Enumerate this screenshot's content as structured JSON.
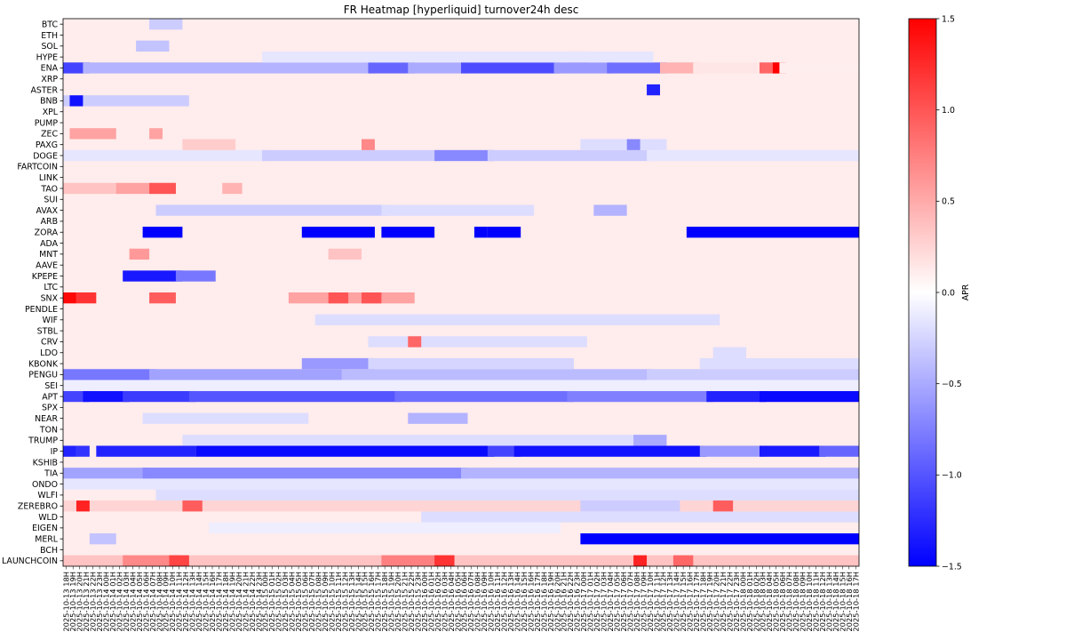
{
  "chart_data": {
    "type": "heatmap",
    "title": "FR Heatmap [hyperliquid] turnover24h desc",
    "colorbar_label": "APR",
    "colormap": "bwr",
    "vmin": -1.5,
    "vmax": 1.5,
    "colorbar_ticks": [
      1.5,
      1.0,
      0.5,
      0.0,
      -0.5,
      -1.0,
      -1.5
    ],
    "colorbar_tick_labels": [
      "1.5",
      "1.0",
      "0.5",
      "0.0",
      "−0.5",
      "−1.0",
      "−1.5"
    ],
    "colors": {
      "low": "#0000ff",
      "mid": "#ffffff",
      "high": "#ff0000",
      "baseline": "#fde6e6"
    },
    "time_start": "2025-10-13 18H",
    "time_end": "2025-10-18 17H",
    "x_tick_step_hours": 1,
    "rows": [
      "BTC",
      "ETH",
      "SOL",
      "HYPE",
      "ENA",
      "XRP",
      "ASTER",
      "BNB",
      "XPL",
      "PUMP",
      "ZEC",
      "PAXG",
      "DOGE",
      "FARTCOIN",
      "LINK",
      "TAO",
      "SUI",
      "AVAX",
      "ARB",
      "ZORA",
      "ADA",
      "MNT",
      "AAVE",
      "KPEPE",
      "LTC",
      "SNX",
      "PENDLE",
      "WIF",
      "STBL",
      "CRV",
      "LDO",
      "KBONK",
      "PENGU",
      "SEI",
      "APT",
      "SPX",
      "NEAR",
      "TON",
      "TRUMP",
      "IP",
      "KSHIB",
      "TIA",
      "ONDO",
      "WLFI",
      "ZEREBRO",
      "WLD",
      "EIGEN",
      "MERL",
      "BCH",
      "LAUNCHCOIN"
    ],
    "baseline_apr": 0.11,
    "segments": [
      {
        "row": "ZORA",
        "start": "2025-10-14 06H",
        "end": "2025-10-14 11H",
        "apr": -1.5
      },
      {
        "row": "ZORA",
        "start": "2025-10-15 06H",
        "end": "2025-10-15 16H",
        "apr": -1.5
      },
      {
        "row": "ZORA",
        "start": "2025-10-15 18H",
        "end": "2025-10-16 01H",
        "apr": -1.5
      },
      {
        "row": "ZORA",
        "start": "2025-10-16 08H",
        "end": "2025-10-16 09H",
        "apr": -1.5
      },
      {
        "row": "ZORA",
        "start": "2025-10-16 10H",
        "end": "2025-10-16 14H",
        "apr": -1.5
      },
      {
        "row": "ZORA",
        "start": "2025-10-17 16H",
        "end": "2025-10-18 17H",
        "apr": -1.5
      },
      {
        "row": "KPEPE",
        "start": "2025-10-14 03H",
        "end": "2025-10-14 11H",
        "apr": -1.35
      },
      {
        "row": "KPEPE",
        "start": "2025-10-14 11H",
        "end": "2025-10-14 16H",
        "apr": -0.8
      },
      {
        "row": "APT",
        "start": "2025-10-13 18H",
        "end": "2025-10-13 21H",
        "apr": -1.1
      },
      {
        "row": "APT",
        "start": "2025-10-13 21H",
        "end": "2025-10-14 03H",
        "apr": -1.4
      },
      {
        "row": "APT",
        "start": "2025-10-14 03H",
        "end": "2025-10-14 13H",
        "apr": -1.15
      },
      {
        "row": "APT",
        "start": "2025-10-14 13H",
        "end": "2025-10-15 20H",
        "apr": -1.0
      },
      {
        "row": "APT",
        "start": "2025-10-15 20H",
        "end": "2025-10-16 22H",
        "apr": -0.85
      },
      {
        "row": "APT",
        "start": "2025-10-16 22H",
        "end": "2025-10-17 19H",
        "apr": -0.75
      },
      {
        "row": "APT",
        "start": "2025-10-17 19H",
        "end": "2025-10-18 03H",
        "apr": -1.3
      },
      {
        "row": "APT",
        "start": "2025-10-18 03H",
        "end": "2025-10-18 17H",
        "apr": -1.45
      },
      {
        "row": "IP",
        "start": "2025-10-13 18H",
        "end": "2025-10-13 19H",
        "apr": -1.3
      },
      {
        "row": "IP",
        "start": "2025-10-13 20H",
        "end": "2025-10-13 21H",
        "apr": -1.2
      },
      {
        "row": "IP",
        "start": "2025-10-13 23H",
        "end": "2025-10-14 13H",
        "apr": -1.3
      },
      {
        "row": "IP",
        "start": "2025-10-14 14H",
        "end": "2025-10-16 10H",
        "apr": -1.45
      },
      {
        "row": "IP",
        "start": "2025-10-16 10H",
        "end": "2025-10-16 14H",
        "apr": -1.1
      },
      {
        "row": "IP",
        "start": "2025-10-16 14H",
        "end": "2025-10-17 18H",
        "apr": -1.4
      },
      {
        "row": "IP",
        "start": "2025-10-17 18H",
        "end": "2025-10-18 03H",
        "apr": -0.6
      },
      {
        "row": "IP",
        "start": "2025-10-18 03H",
        "end": "2025-10-18 12H",
        "apr": -1.35
      },
      {
        "row": "IP",
        "start": "2025-10-18 12H",
        "end": "2025-10-18 17H",
        "apr": -0.9
      },
      {
        "row": "MERL",
        "start": "2025-10-17 00H",
        "end": "2025-10-18 17H",
        "apr": -1.5
      },
      {
        "row": "MERL",
        "start": "2025-10-13 22H",
        "end": "2025-10-14 01H",
        "apr": -0.35
      },
      {
        "row": "PENGU",
        "start": "2025-10-13 18H",
        "end": "2025-10-14 07H",
        "apr": -0.8
      },
      {
        "row": "PENGU",
        "start": "2025-10-14 07H",
        "end": "2025-10-15 12H",
        "apr": -0.55
      },
      {
        "row": "PENGU",
        "start": "2025-10-15 12H",
        "end": "2025-10-17 10H",
        "apr": -0.4
      },
      {
        "row": "PENGU",
        "start": "2025-10-17 10H",
        "end": "2025-10-18 17H",
        "apr": -0.3
      },
      {
        "row": "TIA",
        "start": "2025-10-13 18H",
        "end": "2025-10-14 06H",
        "apr": -0.55
      },
      {
        "row": "TIA",
        "start": "2025-10-14 06H",
        "end": "2025-10-16 06H",
        "apr": -0.7
      },
      {
        "row": "TIA",
        "start": "2025-10-16 06H",
        "end": "2025-10-18 17H",
        "apr": -0.45
      },
      {
        "row": "ENA",
        "start": "2025-10-13 18H",
        "end": "2025-10-13 21H",
        "apr": -1.1
      },
      {
        "row": "ENA",
        "start": "2025-10-13 21H",
        "end": "2025-10-15 16H",
        "apr": -0.45
      },
      {
        "row": "ENA",
        "start": "2025-10-15 16H",
        "end": "2025-10-15 22H",
        "apr": -0.9
      },
      {
        "row": "ENA",
        "start": "2025-10-15 22H",
        "end": "2025-10-16 06H",
        "apr": -0.5
      },
      {
        "row": "ENA",
        "start": "2025-10-16 06H",
        "end": "2025-10-16 20H",
        "apr": -1.05
      },
      {
        "row": "ENA",
        "start": "2025-10-16 20H",
        "end": "2025-10-17 04H",
        "apr": -0.6
      },
      {
        "row": "ENA",
        "start": "2025-10-17 04H",
        "end": "2025-10-17 12H",
        "apr": -0.85
      },
      {
        "row": "ENA",
        "start": "2025-10-17 12H",
        "end": "2025-10-17 17H",
        "apr": 0.45
      },
      {
        "row": "ENA",
        "start": "2025-10-17 17H",
        "end": "2025-10-18 03H",
        "apr": 0.15
      },
      {
        "row": "ENA",
        "start": "2025-10-18 03H",
        "end": "2025-10-18 05H",
        "apr": 0.9
      },
      {
        "row": "ENA",
        "start": "2025-10-18 05H",
        "end": "2025-10-18 06H",
        "apr": 1.5
      },
      {
        "row": "ENA",
        "start": "2025-10-18 06H",
        "end": "2025-10-18 17H",
        "apr": 0.1
      },
      {
        "row": "DOGE",
        "start": "2025-10-13 18H",
        "end": "2025-10-15 00H",
        "apr": -0.15
      },
      {
        "row": "DOGE",
        "start": "2025-10-15 00H",
        "end": "2025-10-16 02H",
        "apr": -0.3
      },
      {
        "row": "DOGE",
        "start": "2025-10-16 02H",
        "end": "2025-10-16 10H",
        "apr": -0.7
      },
      {
        "row": "DOGE",
        "start": "2025-10-16 10H",
        "end": "2025-10-17 10H",
        "apr": -0.3
      },
      {
        "row": "DOGE",
        "start": "2025-10-17 10H",
        "end": "2025-10-18 17H",
        "apr": -0.15
      },
      {
        "row": "NEAR",
        "start": "2025-10-15 22H",
        "end": "2025-10-16 06H",
        "apr": -0.45
      },
      {
        "row": "NEAR",
        "start": "2025-10-14 06H",
        "end": "2025-10-15 06H",
        "apr": -0.2
      },
      {
        "row": "KBONK",
        "start": "2025-10-15 06H",
        "end": "2025-10-15 16H",
        "apr": -0.6
      },
      {
        "row": "KBONK",
        "start": "2025-10-15 16H",
        "end": "2025-10-16 22H",
        "apr": -0.25
      },
      {
        "row": "KBONK",
        "start": "2025-10-17 18H",
        "end": "2025-10-18 17H",
        "apr": -0.2
      },
      {
        "row": "AVAX",
        "start": "2025-10-14 08H",
        "end": "2025-10-15 18H",
        "apr": -0.3
      },
      {
        "row": "AVAX",
        "start": "2025-10-15 18H",
        "end": "2025-10-16 16H",
        "apr": -0.2
      },
      {
        "row": "AVAX",
        "start": "2025-10-17 02H",
        "end": "2025-10-17 06H",
        "apr": -0.45
      },
      {
        "row": "TRUMP",
        "start": "2025-10-14 12H",
        "end": "2025-10-17 08H",
        "apr": -0.2
      },
      {
        "row": "TRUMP",
        "start": "2025-10-17 08H",
        "end": "2025-10-17 12H",
        "apr": -0.5
      },
      {
        "row": "WLD",
        "start": "2025-10-16 00H",
        "end": "2025-10-18 17H",
        "apr": -0.2
      },
      {
        "row": "ONDO",
        "start": "2025-10-13 18H",
        "end": "2025-10-18 17H",
        "apr": -0.15
      },
      {
        "row": "WLFI",
        "start": "2025-10-14 08H",
        "end": "2025-10-18 17H",
        "apr": -0.2
      },
      {
        "row": "CRV",
        "start": "2025-10-15 16H",
        "end": "2025-10-17 00H",
        "apr": -0.2
      },
      {
        "row": "WIF",
        "start": "2025-10-15 08H",
        "end": "2025-10-17 20H",
        "apr": -0.2
      },
      {
        "row": "BNB",
        "start": "2025-10-13 18H",
        "end": "2025-10-14 12H",
        "apr": -0.3
      },
      {
        "row": "BNB",
        "start": "2025-10-13 19H",
        "end": "2025-10-13 20H",
        "apr": -1.4
      },
      {
        "row": "ASTER",
        "start": "2025-10-17 10H",
        "end": "2025-10-17 11H",
        "apr": -1.3
      },
      {
        "row": "HYPE",
        "start": "2025-10-16 22H",
        "end": "2025-10-17 00H",
        "apr": -0.7
      },
      {
        "row": "HYPE",
        "start": "2025-10-15 00H",
        "end": "2025-10-17 10H",
        "apr": -0.15
      },
      {
        "row": "SOL",
        "start": "2025-10-14 05H",
        "end": "2025-10-14 09H",
        "apr": -0.35
      },
      {
        "row": "BTC",
        "start": "2025-10-14 07H",
        "end": "2025-10-14 11H",
        "apr": -0.3
      },
      {
        "row": "EIGEN",
        "start": "2025-10-14 16H",
        "end": "2025-10-16 20H",
        "apr": -0.1
      },
      {
        "row": "MNT",
        "start": "2025-10-14 04H",
        "end": "2025-10-14 06H",
        "apr": 0.6
      },
      {
        "row": "MNT",
        "start": "2025-10-15 10H",
        "end": "2025-10-15 14H",
        "apr": 0.35
      },
      {
        "row": "TAO",
        "start": "2025-10-13 18H",
        "end": "2025-10-14 02H",
        "apr": 0.35
      },
      {
        "row": "TAO",
        "start": "2025-10-14 02H",
        "end": "2025-10-14 10H",
        "apr": 0.55
      },
      {
        "row": "TAO",
        "start": "2025-10-14 07H",
        "end": "2025-10-14 10H",
        "apr": 1.0
      },
      {
        "row": "TAO",
        "start": "2025-10-14 18H",
        "end": "2025-10-14 20H",
        "apr": 0.45
      },
      {
        "row": "ZEC",
        "start": "2025-10-13 19H",
        "end": "2025-10-14 01H",
        "apr": 0.55
      },
      {
        "row": "ZEC",
        "start": "2025-10-14 07H",
        "end": "2025-10-14 08H",
        "apr": 0.55
      },
      {
        "row": "SNX",
        "start": "2025-10-13 18H",
        "end": "2025-10-13 19H",
        "apr": 1.45
      },
      {
        "row": "SNX",
        "start": "2025-10-13 20H",
        "end": "2025-10-13 22H",
        "apr": 1.2
      },
      {
        "row": "SNX",
        "start": "2025-10-14 07H",
        "end": "2025-10-14 10H",
        "apr": 0.95
      },
      {
        "row": "SNX",
        "start": "2025-10-15 04H",
        "end": "2025-10-15 22H",
        "apr": 0.55
      },
      {
        "row": "SNX",
        "start": "2025-10-15 10H",
        "end": "2025-10-15 12H",
        "apr": 1.0
      },
      {
        "row": "SNX",
        "start": "2025-10-15 15H",
        "end": "2025-10-15 17H",
        "apr": 1.0
      },
      {
        "row": "PAXG",
        "start": "2025-10-14 12H",
        "end": "2025-10-14 19H",
        "apr": 0.3
      },
      {
        "row": "PAXG",
        "start": "2025-10-15 15H",
        "end": "2025-10-15 16H",
        "apr": 0.7
      },
      {
        "row": "PAXG",
        "start": "2025-10-17 00H",
        "end": "2025-10-17 12H",
        "apr": -0.2
      },
      {
        "row": "PAXG",
        "start": "2025-10-17 07H",
        "end": "2025-10-17 08H",
        "apr": -0.7
      },
      {
        "row": "CRV",
        "start": "2025-10-15 22H",
        "end": "2025-10-15 23H",
        "apr": 0.9
      },
      {
        "row": "ZEREBRO",
        "start": "2025-10-13 18H",
        "end": "2025-10-18 17H",
        "apr": 0.25
      },
      {
        "row": "ZEREBRO",
        "start": "2025-10-13 20H",
        "end": "2025-10-13 21H",
        "apr": 1.3
      },
      {
        "row": "ZEREBRO",
        "start": "2025-10-14 12H",
        "end": "2025-10-14 14H",
        "apr": 0.95
      },
      {
        "row": "ZEREBRO",
        "start": "2025-10-17 00H",
        "end": "2025-10-17 14H",
        "apr": -0.3
      },
      {
        "row": "ZEREBRO",
        "start": "2025-10-17 20H",
        "end": "2025-10-17 22H",
        "apr": 0.95
      },
      {
        "row": "LAUNCHCOIN",
        "start": "2025-10-13 18H",
        "end": "2025-10-18 17H",
        "apr": 0.35
      },
      {
        "row": "LAUNCHCOIN",
        "start": "2025-10-14 03H",
        "end": "2025-10-14 11H",
        "apr": 0.7
      },
      {
        "row": "LAUNCHCOIN",
        "start": "2025-10-14 10H",
        "end": "2025-10-14 12H",
        "apr": 1.1
      },
      {
        "row": "LAUNCHCOIN",
        "start": "2025-10-15 18H",
        "end": "2025-10-16 04H",
        "apr": 0.75
      },
      {
        "row": "LAUNCHCOIN",
        "start": "2025-10-16 02H",
        "end": "2025-10-16 04H",
        "apr": 1.2
      },
      {
        "row": "LAUNCHCOIN",
        "start": "2025-10-17 08H",
        "end": "2025-10-17 09H",
        "apr": 1.3
      },
      {
        "row": "LAUNCHCOIN",
        "start": "2025-10-17 14H",
        "end": "2025-10-17 16H",
        "apr": 0.9
      },
      {
        "row": "SEI",
        "start": "2025-10-13 18H",
        "end": "2025-10-18 17H",
        "apr": -0.1
      },
      {
        "row": "LDO",
        "start": "2025-10-17 20H",
        "end": "2025-10-18 00H",
        "apr": -0.2
      }
    ]
  }
}
